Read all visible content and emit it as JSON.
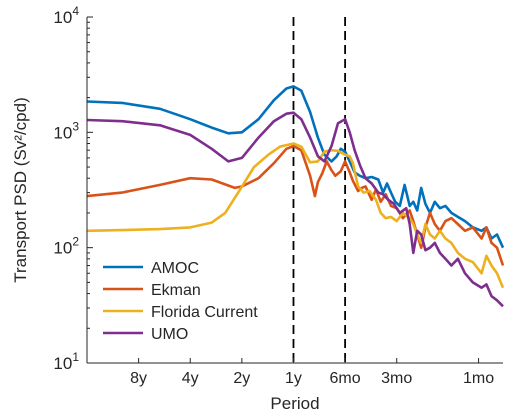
{
  "chart_data": {
    "type": "line",
    "xlabel": "Period",
    "ylabel": "Transport PSD (Sv²/cpd)",
    "x_scale": "log",
    "x_ticks": [
      "8y",
      "4y",
      "2y",
      "1y",
      "6mo",
      "3mo",
      "1mo"
    ],
    "x_ticks_years": [
      8,
      4,
      2,
      1,
      0.5,
      0.25,
      0.0833
    ],
    "x_range_years": [
      16,
      0.06
    ],
    "y_scale": "log",
    "y_ticks": [
      {
        "base": "10",
        "exp": "1"
      },
      {
        "base": "10",
        "exp": "2"
      },
      {
        "base": "10",
        "exp": "3"
      },
      {
        "base": "10",
        "exp": "4"
      }
    ],
    "ylim": [
      10,
      10000
    ],
    "vertical_dashed_lines_years": [
      1,
      0.5
    ],
    "legend_position": "bottom-left",
    "grid": false,
    "series": [
      {
        "name": "AMOC",
        "color": "#0072BD",
        "points": [
          [
            16,
            1850
          ],
          [
            10,
            1800
          ],
          [
            6,
            1600
          ],
          [
            4,
            1300
          ],
          [
            3,
            1100
          ],
          [
            2.4,
            980
          ],
          [
            2,
            1000
          ],
          [
            1.6,
            1300
          ],
          [
            1.3,
            1900
          ],
          [
            1.1,
            2400
          ],
          [
            1,
            2500
          ],
          [
            0.9,
            2300
          ],
          [
            0.8,
            1500
          ],
          [
            0.72,
            900
          ],
          [
            0.66,
            640
          ],
          [
            0.6,
            560
          ],
          [
            0.56,
            620
          ],
          [
            0.53,
            720
          ],
          [
            0.5,
            680
          ],
          [
            0.47,
            560
          ],
          [
            0.44,
            450
          ],
          [
            0.41,
            420
          ],
          [
            0.38,
            400
          ],
          [
            0.35,
            410
          ],
          [
            0.32,
            390
          ],
          [
            0.3,
            300
          ],
          [
            0.285,
            360
          ],
          [
            0.27,
            300
          ],
          [
            0.255,
            250
          ],
          [
            0.24,
            230
          ],
          [
            0.225,
            350
          ],
          [
            0.21,
            230
          ],
          [
            0.2,
            250
          ],
          [
            0.19,
            210
          ],
          [
            0.18,
            330
          ],
          [
            0.17,
            240
          ],
          [
            0.16,
            200
          ],
          [
            0.15,
            250
          ],
          [
            0.14,
            220
          ],
          [
            0.13,
            230
          ],
          [
            0.12,
            200
          ],
          [
            0.11,
            185
          ],
          [
            0.1,
            170
          ],
          [
            0.09,
            150
          ],
          [
            0.08,
            140
          ],
          [
            0.075,
            150
          ],
          [
            0.07,
            120
          ],
          [
            0.065,
            130
          ],
          [
            0.06,
            100
          ]
        ]
      },
      {
        "name": "Ekman",
        "color": "#D95319",
        "points": [
          [
            16,
            280
          ],
          [
            10,
            300
          ],
          [
            6,
            350
          ],
          [
            4,
            400
          ],
          [
            3,
            390
          ],
          [
            2.2,
            330
          ],
          [
            2,
            340
          ],
          [
            1.6,
            400
          ],
          [
            1.3,
            540
          ],
          [
            1.1,
            720
          ],
          [
            1,
            760
          ],
          [
            0.9,
            700
          ],
          [
            0.8,
            420
          ],
          [
            0.75,
            280
          ],
          [
            0.72,
            370
          ],
          [
            0.68,
            440
          ],
          [
            0.64,
            560
          ],
          [
            0.6,
            470
          ],
          [
            0.57,
            420
          ],
          [
            0.53,
            460
          ],
          [
            0.5,
            560
          ],
          [
            0.47,
            450
          ],
          [
            0.45,
            380
          ],
          [
            0.42,
            310
          ],
          [
            0.4,
            330
          ],
          [
            0.38,
            340
          ],
          [
            0.35,
            260
          ],
          [
            0.33,
            320
          ],
          [
            0.31,
            250
          ],
          [
            0.29,
            290
          ],
          [
            0.27,
            230
          ],
          [
            0.25,
            220
          ],
          [
            0.23,
            180
          ],
          [
            0.21,
            210
          ],
          [
            0.2,
            170
          ],
          [
            0.19,
            130
          ],
          [
            0.18,
            100
          ],
          [
            0.17,
            150
          ],
          [
            0.16,
            200
          ],
          [
            0.15,
            160
          ],
          [
            0.14,
            140
          ],
          [
            0.13,
            170
          ],
          [
            0.12,
            180
          ],
          [
            0.11,
            160
          ],
          [
            0.1,
            140
          ],
          [
            0.09,
            150
          ],
          [
            0.08,
            120
          ],
          [
            0.075,
            150
          ],
          [
            0.07,
            110
          ],
          [
            0.065,
            100
          ],
          [
            0.06,
            70
          ]
        ]
      },
      {
        "name": "Florida Current",
        "color": "#EDB120",
        "points": [
          [
            16,
            140
          ],
          [
            10,
            142
          ],
          [
            6,
            145
          ],
          [
            4,
            150
          ],
          [
            3,
            165
          ],
          [
            2.5,
            200
          ],
          [
            2.1,
            300
          ],
          [
            1.7,
            500
          ],
          [
            1.4,
            640
          ],
          [
            1.2,
            750
          ],
          [
            1,
            800
          ],
          [
            0.9,
            750
          ],
          [
            0.8,
            550
          ],
          [
            0.72,
            560
          ],
          [
            0.66,
            680
          ],
          [
            0.6,
            700
          ],
          [
            0.55,
            690
          ],
          [
            0.5,
            640
          ],
          [
            0.47,
            620
          ],
          [
            0.45,
            540
          ],
          [
            0.42,
            340
          ],
          [
            0.39,
            300
          ],
          [
            0.36,
            310
          ],
          [
            0.33,
            260
          ],
          [
            0.31,
            200
          ],
          [
            0.29,
            180
          ],
          [
            0.27,
            185
          ],
          [
            0.25,
            170
          ],
          [
            0.23,
            200
          ],
          [
            0.21,
            180
          ],
          [
            0.2,
            160
          ],
          [
            0.19,
            130
          ],
          [
            0.18,
            110
          ],
          [
            0.17,
            160
          ],
          [
            0.16,
            130
          ],
          [
            0.15,
            120
          ],
          [
            0.14,
            140
          ],
          [
            0.13,
            120
          ],
          [
            0.12,
            110
          ],
          [
            0.11,
            90
          ],
          [
            0.1,
            80
          ],
          [
            0.09,
            75
          ],
          [
            0.08,
            60
          ],
          [
            0.075,
            85
          ],
          [
            0.07,
            70
          ],
          [
            0.065,
            60
          ],
          [
            0.06,
            45
          ]
        ]
      },
      {
        "name": "UMO",
        "color": "#7E2F8E",
        "points": [
          [
            16,
            1280
          ],
          [
            10,
            1250
          ],
          [
            6,
            1150
          ],
          [
            4,
            950
          ],
          [
            3,
            720
          ],
          [
            2.4,
            560
          ],
          [
            2,
            600
          ],
          [
            1.6,
            900
          ],
          [
            1.3,
            1250
          ],
          [
            1.1,
            1450
          ],
          [
            1,
            1480
          ],
          [
            0.9,
            1300
          ],
          [
            0.8,
            900
          ],
          [
            0.72,
            620
          ],
          [
            0.66,
            560
          ],
          [
            0.6,
            760
          ],
          [
            0.55,
            1200
          ],
          [
            0.5,
            1300
          ],
          [
            0.47,
            1000
          ],
          [
            0.44,
            700
          ],
          [
            0.41,
            520
          ],
          [
            0.38,
            400
          ],
          [
            0.35,
            360
          ],
          [
            0.32,
            300
          ],
          [
            0.3,
            290
          ],
          [
            0.28,
            260
          ],
          [
            0.26,
            240
          ],
          [
            0.24,
            200
          ],
          [
            0.22,
            220
          ],
          [
            0.21,
            160
          ],
          [
            0.2,
            90
          ],
          [
            0.19,
            140
          ],
          [
            0.18,
            130
          ],
          [
            0.17,
            95
          ],
          [
            0.16,
            100
          ],
          [
            0.15,
            110
          ],
          [
            0.14,
            90
          ],
          [
            0.13,
            80
          ],
          [
            0.12,
            70
          ],
          [
            0.11,
            80
          ],
          [
            0.1,
            60
          ],
          [
            0.09,
            50
          ],
          [
            0.08,
            45
          ],
          [
            0.075,
            48
          ],
          [
            0.07,
            38
          ],
          [
            0.065,
            35
          ],
          [
            0.06,
            31
          ]
        ]
      }
    ]
  }
}
